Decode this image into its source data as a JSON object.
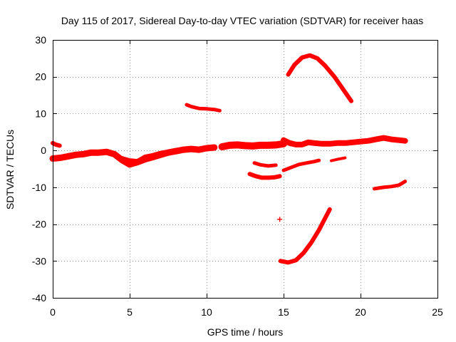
{
  "chart_data": {
    "type": "scatter",
    "title": "Day 115 of 2017, Sidereal Day-to-day VTEC variation (SDTVAR) for receiver haas",
    "xlabel": "GPS time / hours",
    "ylabel": "SDTVAR / TECUs",
    "xlim": [
      0,
      25
    ],
    "ylim": [
      -40,
      30
    ],
    "xticks": [
      0,
      5,
      10,
      15,
      20,
      25
    ],
    "yticks": [
      -40,
      -30,
      -20,
      -10,
      0,
      10,
      20,
      30
    ],
    "grid": true,
    "marker": "+",
    "color": "#ff0000",
    "series": [
      {
        "name": "early-high",
        "width": 6,
        "points": [
          [
            0.0,
            2.0
          ],
          [
            0.2,
            1.6
          ],
          [
            0.45,
            1.3
          ]
        ]
      },
      {
        "name": "baseline-0-5",
        "width": 9,
        "points": [
          [
            0.0,
            -2.2
          ],
          [
            0.5,
            -2.0
          ],
          [
            1.0,
            -1.6
          ],
          [
            1.5,
            -1.2
          ],
          [
            2.0,
            -1.0
          ],
          [
            2.5,
            -0.6
          ],
          [
            3.0,
            -0.6
          ],
          [
            3.5,
            -0.4
          ],
          [
            4.0,
            -1.0
          ],
          [
            4.5,
            -2.6
          ],
          [
            5.0,
            -3.8
          ],
          [
            5.5,
            -3.2
          ],
          [
            6.0,
            -2.4
          ],
          [
            6.5,
            -1.8
          ],
          [
            7.0,
            -1.2
          ],
          [
            7.5,
            -0.6
          ],
          [
            8.0,
            -0.2
          ],
          [
            8.5,
            0.2
          ],
          [
            9.0,
            0.4
          ],
          [
            9.5,
            0.2
          ],
          [
            10.0,
            0.6
          ],
          [
            10.5,
            0.8
          ]
        ]
      },
      {
        "name": "baseline-offset",
        "width": 5,
        "points": [
          [
            4.5,
            -2.0
          ],
          [
            5.0,
            -2.6
          ],
          [
            5.5,
            -2.8
          ],
          [
            6.0,
            -1.6
          ],
          [
            6.5,
            -1.2
          ],
          [
            7.0,
            -0.6
          ],
          [
            7.5,
            -0.2
          ],
          [
            8.0,
            0.2
          ],
          [
            8.5,
            0.4
          ],
          [
            9.0,
            0.2
          ]
        ]
      },
      {
        "name": "segment-8-10",
        "width": 5,
        "points": [
          [
            8.7,
            12.4
          ],
          [
            9.0,
            11.9
          ],
          [
            9.5,
            11.4
          ],
          [
            10.0,
            11.3
          ],
          [
            10.5,
            11.1
          ],
          [
            10.85,
            10.8
          ]
        ]
      },
      {
        "name": "baseline-11-15",
        "width": 10,
        "points": [
          [
            11.0,
            1.0
          ],
          [
            11.5,
            1.4
          ],
          [
            12.0,
            1.5
          ],
          [
            12.5,
            1.3
          ],
          [
            13.0,
            1.2
          ],
          [
            13.5,
            1.4
          ],
          [
            14.0,
            1.4
          ],
          [
            14.5,
            1.5
          ],
          [
            15.0,
            1.8
          ]
        ]
      },
      {
        "name": "baseline-15-23",
        "width": 8,
        "points": [
          [
            15.0,
            2.8
          ],
          [
            15.4,
            2.0
          ],
          [
            15.8,
            1.6
          ],
          [
            16.2,
            1.6
          ],
          [
            16.6,
            2.2
          ],
          [
            17.0,
            2.0
          ],
          [
            17.5,
            1.8
          ],
          [
            18.0,
            1.8
          ],
          [
            18.5,
            2.0
          ],
          [
            19.0,
            2.0
          ],
          [
            19.5,
            2.2
          ],
          [
            20.0,
            2.4
          ],
          [
            20.5,
            2.6
          ],
          [
            21.0,
            3.0
          ],
          [
            21.5,
            3.4
          ],
          [
            22.0,
            3.0
          ],
          [
            22.5,
            2.8
          ],
          [
            22.9,
            2.6
          ]
        ]
      },
      {
        "name": "dip-13-14",
        "width": 6,
        "points": [
          [
            12.8,
            -6.4
          ],
          [
            13.2,
            -7.0
          ],
          [
            13.6,
            -7.4
          ],
          [
            14.0,
            -7.4
          ],
          [
            14.4,
            -7.3
          ],
          [
            14.75,
            -7.0
          ]
        ]
      },
      {
        "name": "dip-small",
        "width": 5,
        "points": [
          [
            13.1,
            -3.4
          ],
          [
            13.5,
            -3.9
          ],
          [
            14.0,
            -4.2
          ],
          [
            14.5,
            -4.0
          ]
        ]
      },
      {
        "name": "rise-15-16",
        "width": 5,
        "points": [
          [
            15.0,
            -5.4
          ],
          [
            15.5,
            -4.6
          ],
          [
            16.0,
            -3.8
          ],
          [
            16.5,
            -3.4
          ],
          [
            17.0,
            -3.0
          ],
          [
            17.3,
            -2.7
          ]
        ]
      },
      {
        "name": "dip-18",
        "width": 4,
        "points": [
          [
            18.1,
            -2.8
          ],
          [
            18.5,
            -2.4
          ],
          [
            19.0,
            -2.0
          ]
        ]
      },
      {
        "name": "dip-21-23",
        "width": 5,
        "points": [
          [
            20.9,
            -10.4
          ],
          [
            21.5,
            -10.0
          ],
          [
            22.0,
            -9.8
          ],
          [
            22.5,
            -9.4
          ],
          [
            22.9,
            -8.4
          ]
        ]
      },
      {
        "name": "arc-high",
        "width": 6,
        "points": [
          [
            15.3,
            20.6
          ],
          [
            15.7,
            23.2
          ],
          [
            16.2,
            25.2
          ],
          [
            16.7,
            25.8
          ],
          [
            17.2,
            25.0
          ],
          [
            17.7,
            23.0
          ],
          [
            18.3,
            20.0
          ],
          [
            18.8,
            17.0
          ],
          [
            19.4,
            13.4
          ]
        ]
      },
      {
        "name": "rise-low",
        "width": 6,
        "points": [
          [
            14.8,
            -30.0
          ],
          [
            15.3,
            -30.4
          ],
          [
            15.8,
            -29.8
          ],
          [
            16.3,
            -27.8
          ],
          [
            16.8,
            -25.0
          ],
          [
            17.3,
            -21.6
          ],
          [
            17.7,
            -18.4
          ],
          [
            18.0,
            -16.0
          ]
        ]
      }
    ],
    "isolated_points": [
      [
        14.75,
        -18.7
      ]
    ]
  }
}
